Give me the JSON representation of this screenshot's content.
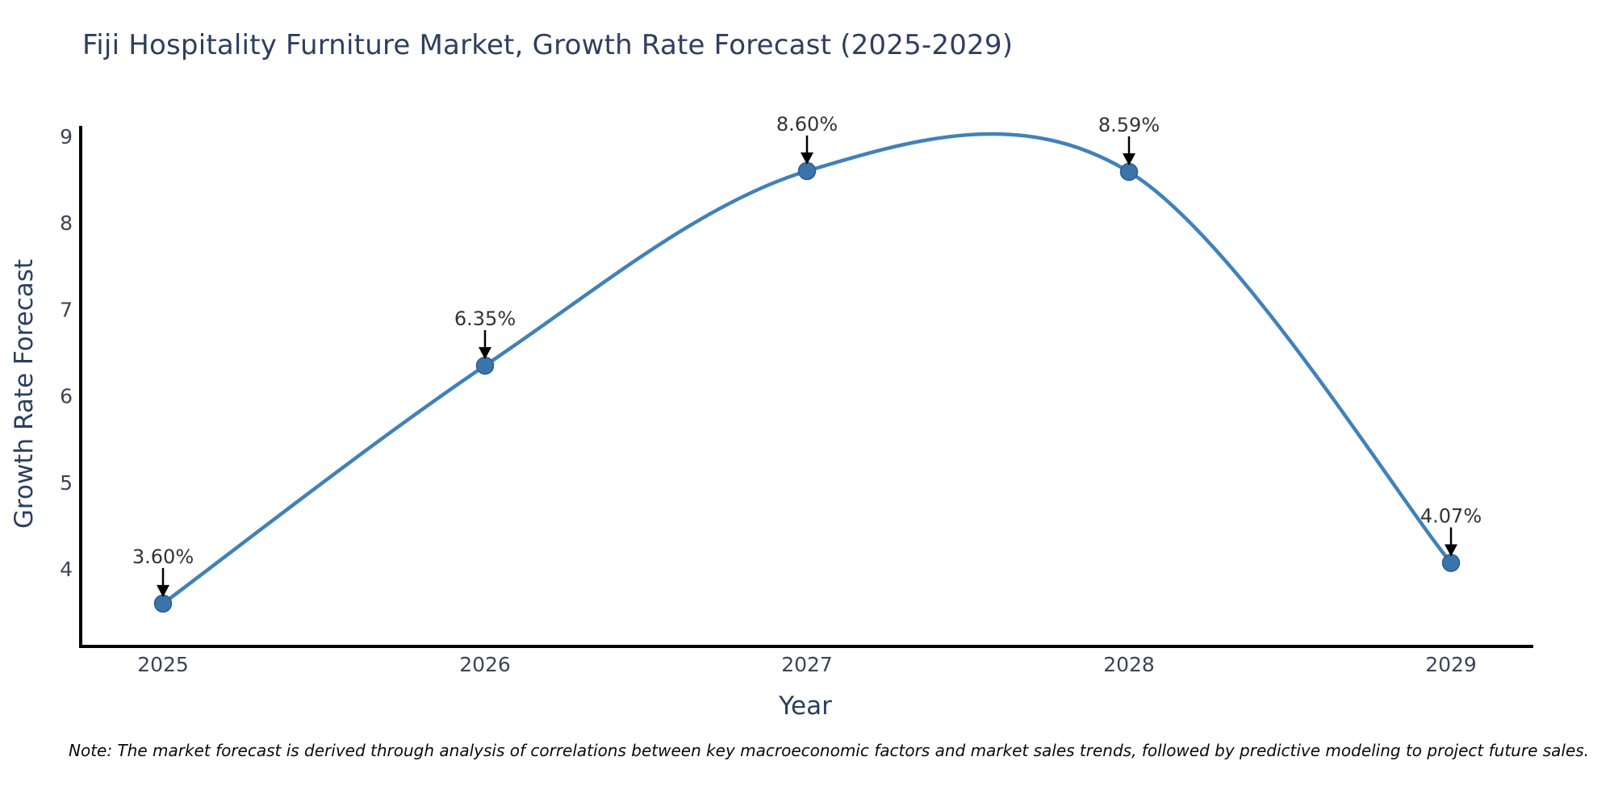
{
  "note": {
    "text": "Note: The market forecast is derived through analysis of correlations between key macroeconomic factors and market sales trends, followed by predictive modeling to project future sales."
  },
  "chart_data": {
    "type": "line",
    "title": "Fiji Hospitality Furniture Market, Growth Rate Forecast (2025-2029)",
    "xlabel": "Year",
    "ylabel": "Growth Rate Forecast",
    "x": [
      2025,
      2026,
      2027,
      2028,
      2029
    ],
    "values": [
      3.6,
      6.35,
      8.6,
      8.59,
      4.07
    ],
    "point_labels": [
      "3.60%",
      "6.35%",
      "8.60%",
      "8.59%",
      "4.07%"
    ],
    "yticks": [
      4,
      5,
      6,
      7,
      8,
      9
    ],
    "ylim": [
      3.1,
      9.1
    ],
    "line_shape": "spline",
    "grid": false,
    "legend": "none",
    "colors": {
      "line": "#4181b9",
      "marker": "#3a74ab",
      "marker_edge": "#2e5d8c",
      "axis": "#000000",
      "title": "#2e3f5f",
      "axis_label": "#2a3f5f",
      "tick_label": "#3b4555",
      "annotation_text": "#333333",
      "arrow": "#000000",
      "background": "#ffffff"
    }
  }
}
